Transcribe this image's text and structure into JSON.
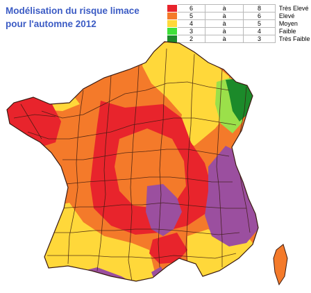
{
  "title": "Modélisation du risque limace pour l'automne 2012",
  "legend": [
    {
      "color": "#e8242c",
      "min": "6",
      "sep": "à",
      "max": "8",
      "label": "Très Elevé"
    },
    {
      "color": "#f47a2a",
      "min": "5",
      "sep": "à",
      "max": "6",
      "label": "Elevé"
    },
    {
      "color": "#ffd83a",
      "min": "4",
      "sep": "à",
      "max": "5",
      "label": "Moyen"
    },
    {
      "color": "#3fe13a",
      "min": "3",
      "sep": "à",
      "max": "4",
      "label": "Faible"
    },
    {
      "color": "#1c8a2a",
      "min": "2",
      "sep": "à",
      "max": "3",
      "label": "Très Faible"
    }
  ],
  "map_colors": {
    "orange": "#f47a2a",
    "red": "#e8242c",
    "yellow": "#ffd83a",
    "purple": "#9b4f9f",
    "light_green": "#9be04a",
    "dark_green": "#1c8a2a",
    "border": "#3a1a10"
  }
}
